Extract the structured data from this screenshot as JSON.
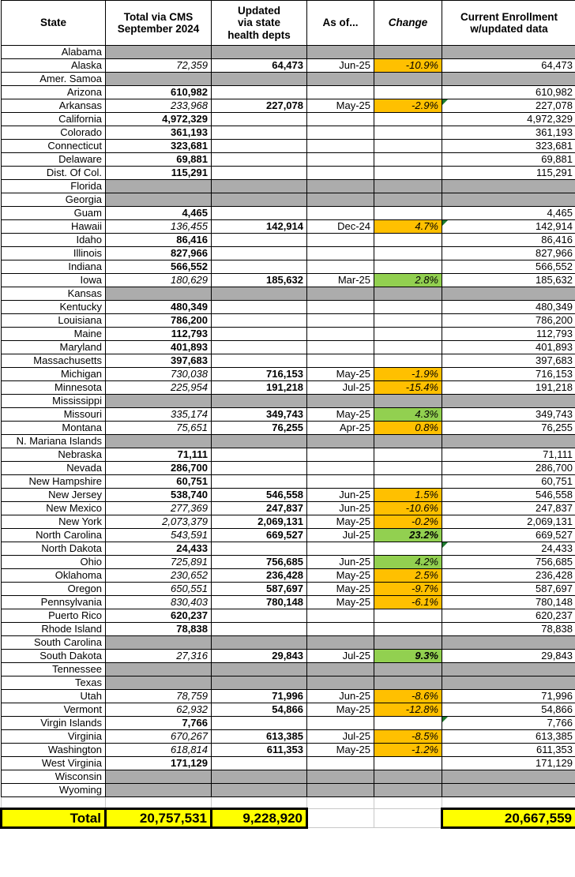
{
  "header": {
    "state": "State",
    "cms": "Total via CMS\nSeptember 2024",
    "updated": "Updated\nvia state\nhealth depts",
    "asof": "As of...",
    "change": "Change",
    "current": "Current Enrollment\nw/updated data"
  },
  "colors": {
    "orange": "#FFC000",
    "green": "#92D050",
    "gray": "#ACACAC",
    "yellow": "#FFFF00",
    "marker": "#1E7A2E",
    "grid-light": "#C8C8C8"
  },
  "rows": [
    {
      "state": "Alabama",
      "gray": true
    },
    {
      "state": "Alaska",
      "cms": "72,359",
      "cms_style": "italic",
      "updated": "64,473",
      "asof": "Jun-25",
      "change": "-10.9%",
      "change_color": "orange",
      "current": "64,473"
    },
    {
      "state": "Amer. Samoa",
      "gray": true
    },
    {
      "state": "Arizona",
      "cms": "610,982",
      "cms_style": "bold",
      "current": "610,982"
    },
    {
      "state": "Arkansas",
      "cms": "233,968",
      "cms_style": "italic",
      "updated": "227,078",
      "asof": "May-25",
      "change": "-2.9%",
      "change_color": "orange",
      "current": "227,078",
      "marker": true
    },
    {
      "state": "California",
      "cms": "4,972,329",
      "cms_style": "bold",
      "current": "4,972,329"
    },
    {
      "state": "Colorado",
      "cms": "361,193",
      "cms_style": "bold",
      "current": "361,193"
    },
    {
      "state": "Connecticut",
      "cms": "323,681",
      "cms_style": "bold",
      "current": "323,681"
    },
    {
      "state": "Delaware",
      "cms": "69,881",
      "cms_style": "bold",
      "current": "69,881"
    },
    {
      "state": "Dist. Of Col.",
      "cms": "115,291",
      "cms_style": "bold",
      "current": "115,291"
    },
    {
      "state": "Florida",
      "gray": true
    },
    {
      "state": "Georgia",
      "gray": true
    },
    {
      "state": "Guam",
      "cms": "4,465",
      "cms_style": "bold",
      "current": "4,465"
    },
    {
      "state": "Hawaii",
      "cms": "136,455",
      "cms_style": "italic",
      "updated": "142,914",
      "asof": "Dec-24",
      "change": "4.7%",
      "change_color": "orange",
      "current": "142,914",
      "marker": true
    },
    {
      "state": "Idaho",
      "cms": "86,416",
      "cms_style": "bold",
      "current": "86,416"
    },
    {
      "state": "Illinois",
      "cms": "827,966",
      "cms_style": "bold",
      "current": "827,966"
    },
    {
      "state": "Indiana",
      "cms": "566,552",
      "cms_style": "bold",
      "current": "566,552"
    },
    {
      "state": "Iowa",
      "cms": "180,629",
      "cms_style": "italic",
      "updated": "185,632",
      "asof": "Mar-25",
      "change": "2.8%",
      "change_color": "green",
      "current": "185,632"
    },
    {
      "state": "Kansas",
      "gray": true
    },
    {
      "state": "Kentucky",
      "cms": "480,349",
      "cms_style": "bold",
      "current": "480,349"
    },
    {
      "state": "Louisiana",
      "cms": "786,200",
      "cms_style": "bold",
      "current": "786,200"
    },
    {
      "state": "Maine",
      "cms": "112,793",
      "cms_style": "bold",
      "current": "112,793"
    },
    {
      "state": "Maryland",
      "cms": "401,893",
      "cms_style": "bold",
      "current": "401,893"
    },
    {
      "state": "Massachusetts",
      "cms": "397,683",
      "cms_style": "bold",
      "current": "397,683"
    },
    {
      "state": "Michigan",
      "cms": "730,038",
      "cms_style": "italic",
      "updated": "716,153",
      "asof": "May-25",
      "change": "-1.9%",
      "change_color": "orange",
      "current": "716,153"
    },
    {
      "state": "Minnesota",
      "cms": "225,954",
      "cms_style": "italic",
      "updated": "191,218",
      "asof": "Jul-25",
      "change": "-15.4%",
      "change_color": "orange",
      "current": "191,218"
    },
    {
      "state": "Mississippi",
      "gray": true
    },
    {
      "state": "Missouri",
      "cms": "335,174",
      "cms_style": "italic",
      "updated": "349,743",
      "asof": "May-25",
      "change": "4.3%",
      "change_color": "green",
      "current": "349,743"
    },
    {
      "state": "Montana",
      "cms": "75,651",
      "cms_style": "italic",
      "updated": "76,255",
      "asof": "Apr-25",
      "change": "0.8%",
      "change_color": "orange",
      "current": "76,255"
    },
    {
      "state": "N. Mariana Islands",
      "gray": true
    },
    {
      "state": "Nebraska",
      "cms": "71,111",
      "cms_style": "bold",
      "current": "71,111"
    },
    {
      "state": "Nevada",
      "cms": "286,700",
      "cms_style": "bold",
      "current": "286,700"
    },
    {
      "state": "New Hampshire",
      "cms": "60,751",
      "cms_style": "bold",
      "current": "60,751"
    },
    {
      "state": "New Jersey",
      "cms": "538,740",
      "cms_style": "bold",
      "updated": "546,558",
      "asof": "Jun-25",
      "change": "1.5%",
      "change_color": "orange",
      "current": "546,558"
    },
    {
      "state": "New Mexico",
      "cms": "277,369",
      "cms_style": "italic",
      "updated": "247,837",
      "asof": "Jun-25",
      "change": "-10.6%",
      "change_color": "orange",
      "current": "247,837"
    },
    {
      "state": "New York",
      "cms": "2,073,379",
      "cms_style": "italic",
      "updated": "2,069,131",
      "asof": "May-25",
      "change": "-0.2%",
      "change_color": "orange",
      "current": "2,069,131"
    },
    {
      "state": "North Carolina",
      "cms": "543,591",
      "cms_style": "italic",
      "updated": "669,527",
      "asof": "Jul-25",
      "change": "23.2%",
      "change_color": "green",
      "change_bold": true,
      "current": "669,527"
    },
    {
      "state": "North Dakota",
      "cms": "24,433",
      "cms_style": "bold",
      "current": "24,433",
      "marker": true
    },
    {
      "state": "Ohio",
      "cms": "725,891",
      "cms_style": "italic",
      "updated": "756,685",
      "asof": "Jun-25",
      "change": "4.2%",
      "change_color": "green",
      "current": "756,685"
    },
    {
      "state": "Oklahoma",
      "cms": "230,652",
      "cms_style": "italic",
      "updated": "236,428",
      "asof": "May-25",
      "change": "2.5%",
      "change_color": "orange",
      "current": "236,428"
    },
    {
      "state": "Oregon",
      "cms": "650,551",
      "cms_style": "italic",
      "updated": "587,697",
      "asof": "May-25",
      "change": "-9.7%",
      "change_color": "orange",
      "current": "587,697"
    },
    {
      "state": "Pennsylvania",
      "cms": "830,403",
      "cms_style": "italic",
      "updated": "780,148",
      "asof": "May-25",
      "change": "-6.1%",
      "change_color": "orange",
      "current": "780,148"
    },
    {
      "state": "Puerto Rico",
      "cms": "620,237",
      "cms_style": "bold",
      "current": "620,237"
    },
    {
      "state": "Rhode Island",
      "cms": "78,838",
      "cms_style": "bold",
      "current": "78,838"
    },
    {
      "state": "South Carolina",
      "gray": true
    },
    {
      "state": "South Dakota",
      "cms": "27,316",
      "cms_style": "italic",
      "updated": "29,843",
      "asof": "Jul-25",
      "change": "9.3%",
      "change_color": "green",
      "change_bold": true,
      "current": "29,843"
    },
    {
      "state": "Tennessee",
      "gray": true
    },
    {
      "state": "Texas",
      "gray": true
    },
    {
      "state": "Utah",
      "cms": "78,759",
      "cms_style": "italic",
      "updated": "71,996",
      "asof": "Jun-25",
      "change": "-8.6%",
      "change_color": "orange",
      "current": "71,996"
    },
    {
      "state": "Vermont",
      "cms": "62,932",
      "cms_style": "italic",
      "updated": "54,866",
      "asof": "May-25",
      "change": "-12.8%",
      "change_color": "orange",
      "current": "54,866"
    },
    {
      "state": "Virgin Islands",
      "cms": "7,766",
      "cms_style": "bold",
      "current": "7,766",
      "marker": true
    },
    {
      "state": "Virginia",
      "cms": "670,267",
      "cms_style": "italic",
      "updated": "613,385",
      "asof": "Jul-25",
      "change": "-8.5%",
      "change_color": "orange",
      "current": "613,385"
    },
    {
      "state": "Washington",
      "cms": "618,814",
      "cms_style": "italic",
      "updated": "611,353",
      "asof": "May-25",
      "change": "-1.2%",
      "change_color": "orange",
      "current": "611,353"
    },
    {
      "state": "West Virginia",
      "cms": "171,129",
      "cms_style": "bold",
      "current": "171,129"
    },
    {
      "state": "Wisconsin",
      "gray": true
    },
    {
      "state": "Wyoming",
      "gray": true
    }
  ],
  "totals": {
    "label": "Total",
    "cms": "20,757,531",
    "updated": "9,228,920",
    "asof": "",
    "change": "",
    "current": "20,667,559"
  }
}
